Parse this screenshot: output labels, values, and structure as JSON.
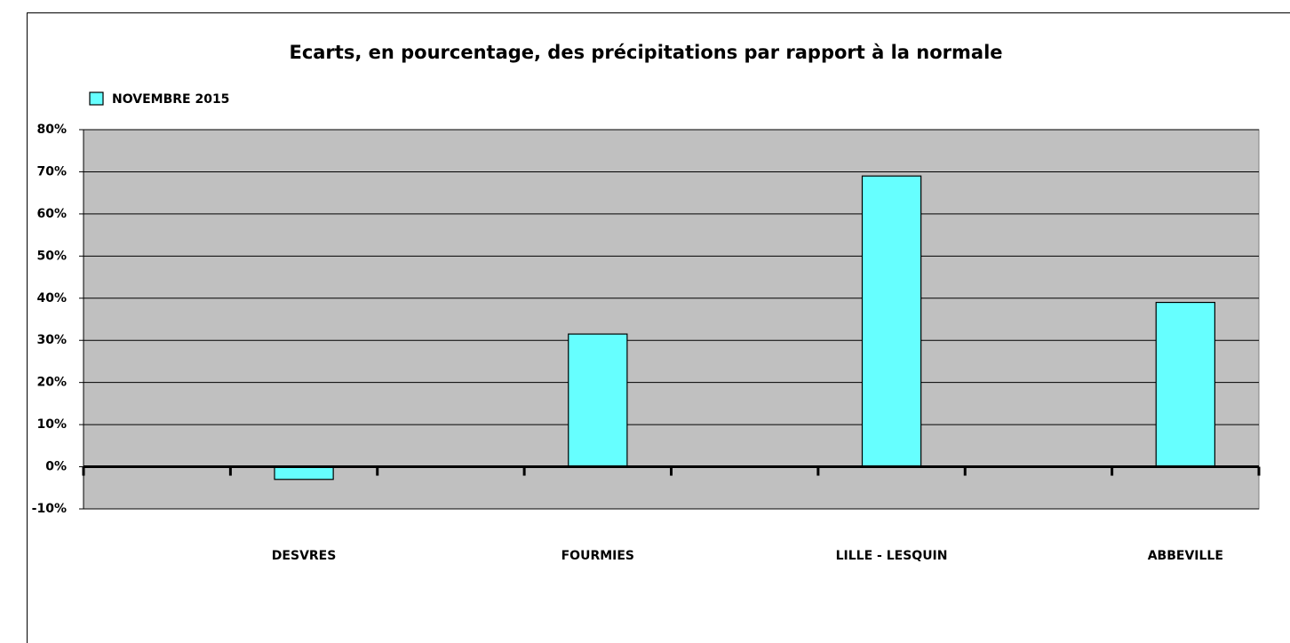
{
  "chart_data": {
    "type": "bar",
    "title": "Ecarts, en pourcentage, des précipitations par rapport à la normale",
    "categories": [
      null,
      "DESVRES",
      null,
      "FOURMIES",
      null,
      "LILLE - LESQUIN",
      null,
      "ABBEVILLE"
    ],
    "series": [
      {
        "name": "NOVEMBRE 2015",
        "color": "#66ffff",
        "values": [
          null,
          -3,
          null,
          31.5,
          null,
          69,
          null,
          39
        ]
      }
    ],
    "ylim": [
      -10,
      80
    ],
    "yticks": [
      {
        "value": -10,
        "label": "-10%"
      },
      {
        "value": 0,
        "label": "0%"
      },
      {
        "value": 10,
        "label": "10%"
      },
      {
        "value": 20,
        "label": "20%"
      },
      {
        "value": 30,
        "label": "30%"
      },
      {
        "value": 40,
        "label": "40%"
      },
      {
        "value": 50,
        "label": "50%"
      },
      {
        "value": 60,
        "label": "60%"
      },
      {
        "value": 70,
        "label": "70%"
      },
      {
        "value": 80,
        "label": "80%"
      }
    ],
    "grid": true,
    "legend": "top-left"
  }
}
